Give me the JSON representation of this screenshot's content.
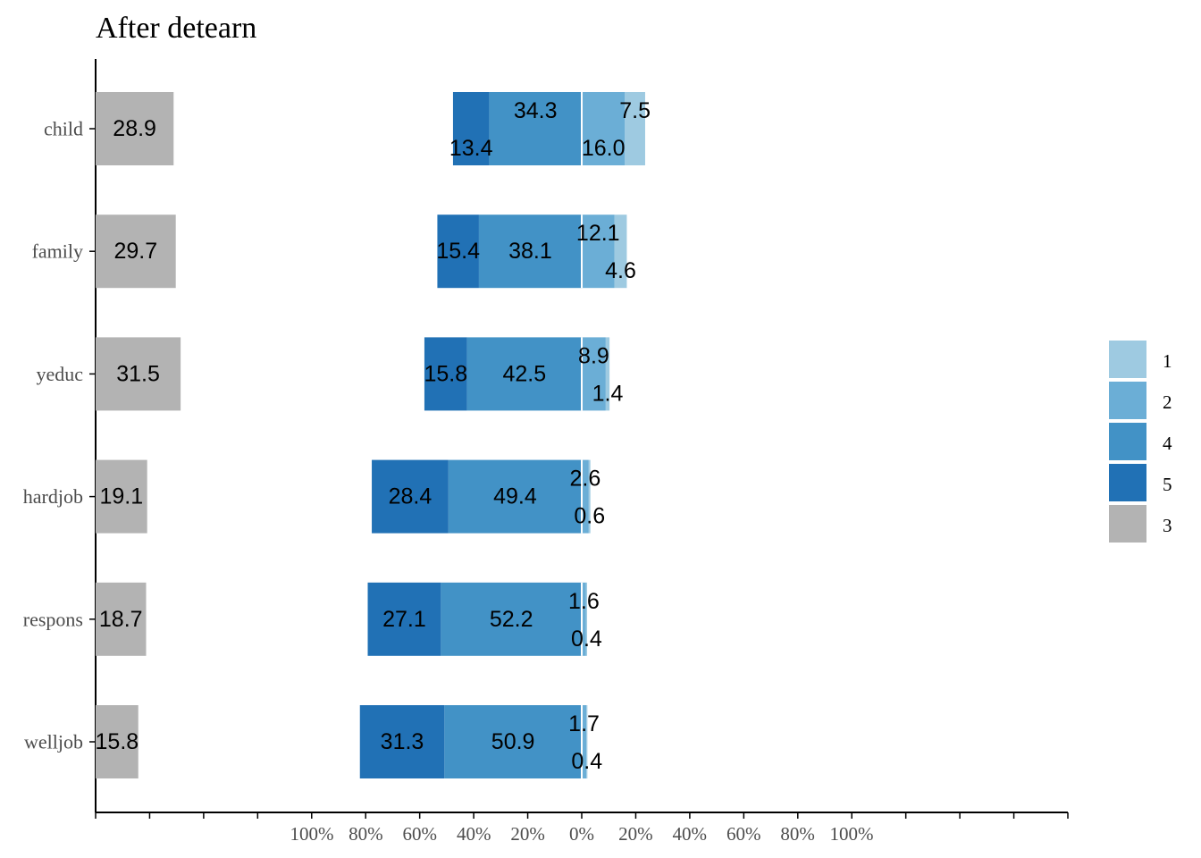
{
  "chart_data": {
    "type": "bar",
    "orientation": "horizontal",
    "layout": "diverging-likert-with-neutral-panel",
    "title": "After detearn",
    "categories": [
      "child",
      "family",
      "yeduc",
      "hardjob",
      "respons",
      "welljob"
    ],
    "x_tick_labels": [
      "100%",
      "80%",
      "60%",
      "40%",
      "20%",
      "0%",
      "20%",
      "40%",
      "60%",
      "80%",
      "100%"
    ],
    "xlim": [
      -100,
      100
    ],
    "grid": false,
    "legend_position": "right",
    "legend": [
      {
        "key": "1",
        "label": "1",
        "color": "#9ECAE1"
      },
      {
        "key": "2",
        "label": "2",
        "color": "#6BAED6"
      },
      {
        "key": "4",
        "label": "4",
        "color": "#4292C6"
      },
      {
        "key": "5",
        "label": "5",
        "color": "#2171B5"
      },
      {
        "key": "3",
        "label": "3",
        "color": "#B3B3B3"
      }
    ],
    "series": [
      {
        "key": "1",
        "side": "right",
        "values": [
          7.5,
          4.6,
          1.4,
          0.6,
          0.4,
          0.4
        ]
      },
      {
        "key": "2",
        "side": "right",
        "values": [
          16.0,
          12.1,
          8.9,
          2.6,
          1.6,
          1.7
        ]
      },
      {
        "key": "4",
        "side": "left",
        "values": [
          34.3,
          38.1,
          42.5,
          49.4,
          52.2,
          50.9
        ]
      },
      {
        "key": "5",
        "side": "left",
        "values": [
          13.4,
          15.4,
          15.8,
          28.4,
          27.1,
          31.3
        ]
      },
      {
        "key": "3",
        "side": "neutral",
        "values": [
          28.9,
          29.7,
          31.5,
          19.1,
          18.7,
          15.8
        ]
      }
    ],
    "labels": {
      "child": {
        "1": "7.5",
        "2": "16.0",
        "4": "34.3",
        "5": "13.4",
        "3": "28.9"
      },
      "family": {
        "1": "4.6",
        "2": "12.1",
        "4": "38.1",
        "5": "15.4",
        "3": "29.7"
      },
      "yeduc": {
        "1": "1.4",
        "2": "8.9",
        "4": "42.5",
        "5": "15.8",
        "3": "31.5"
      },
      "hardjob": {
        "1": "0.6",
        "2": "2.6",
        "4": "49.4",
        "5": "28.4",
        "3": "19.1"
      },
      "respons": {
        "1": "0.4",
        "2": "1.6",
        "4": "52.2",
        "5": "27.1",
        "3": "18.7"
      },
      "welljob": {
        "1": "0.4",
        "2": "1.7",
        "4": "50.9",
        "5": "31.3",
        "3": "15.8"
      }
    }
  }
}
